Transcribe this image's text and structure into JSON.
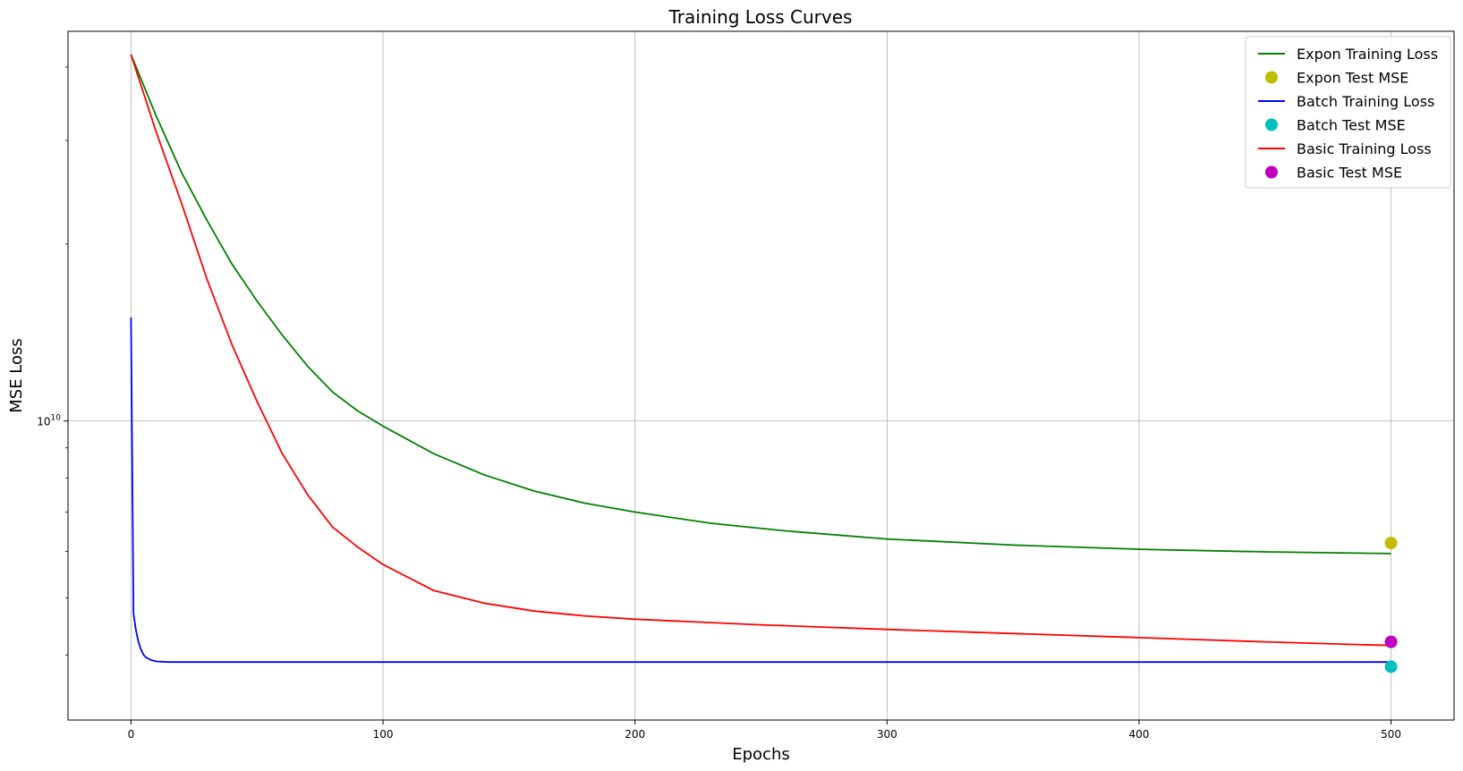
{
  "chart_data": {
    "type": "line",
    "title": "Training Loss Curves",
    "xlabel": "Epochs",
    "ylabel": "MSE Loss",
    "xlim": [
      -25,
      525
    ],
    "ylim": [
      3100000000,
      46000000000
    ],
    "yscale": "log",
    "x_ticks": [
      0,
      100,
      200,
      300,
      400,
      500
    ],
    "y_major_ticks": [
      {
        "value": 10000000000,
        "base": "10",
        "exp": "10"
      }
    ],
    "grid": true,
    "legend_position": "top-right",
    "series": [
      {
        "name": "Expon Training Loss",
        "kind": "line",
        "color": "#008000",
        "x": [
          0,
          10,
          20,
          30,
          40,
          50,
          60,
          70,
          80,
          90,
          100,
          120,
          140,
          160,
          180,
          200,
          230,
          260,
          300,
          350,
          400,
          450,
          500
        ],
        "y": [
          42000000000,
          33000000000,
          26500000000,
          22000000000,
          18500000000,
          16000000000,
          14000000000,
          12400000000,
          11200000000,
          10400000000,
          9800000000,
          8800000000,
          8100000000,
          7600000000,
          7250000000,
          7000000000,
          6700000000,
          6500000000,
          6300000000,
          6150000000,
          6050000000,
          5990000000,
          5950000000
        ]
      },
      {
        "name": "Expon Test MSE",
        "kind": "point",
        "color": "#bfbf00",
        "x": [
          500
        ],
        "y": [
          6200000000
        ]
      },
      {
        "name": "Batch Training Loss",
        "kind": "line",
        "color": "#0000ff",
        "x": [
          0,
          1,
          2,
          3,
          4,
          5,
          6,
          8,
          10,
          15,
          20,
          50,
          100,
          150,
          200,
          250,
          300,
          350,
          400,
          450,
          500
        ],
        "y": [
          15000000000,
          4700000000,
          4400000000,
          4200000000,
          4080000000,
          4000000000,
          3960000000,
          3920000000,
          3900000000,
          3890000000,
          3890000000,
          3890000000,
          3890000000,
          3890000000,
          3890000000,
          3890000000,
          3890000000,
          3890000000,
          3890000000,
          3890000000,
          3890000000
        ]
      },
      {
        "name": "Batch Test MSE",
        "kind": "point",
        "color": "#00bfbf",
        "x": [
          500
        ],
        "y": [
          3820000000
        ]
      },
      {
        "name": "Basic Training Loss",
        "kind": "line",
        "color": "#ff0000",
        "x": [
          0,
          10,
          20,
          30,
          40,
          50,
          60,
          70,
          80,
          90,
          100,
          120,
          140,
          160,
          180,
          200,
          250,
          300,
          350,
          400,
          450,
          500
        ],
        "y": [
          42000000000,
          31000000000,
          23500000000,
          17500000000,
          13500000000,
          10800000000,
          8800000000,
          7500000000,
          6600000000,
          6100000000,
          5700000000,
          5150000000,
          4900000000,
          4750000000,
          4660000000,
          4600000000,
          4500000000,
          4420000000,
          4350000000,
          4280000000,
          4210000000,
          4150000000
        ]
      },
      {
        "name": "Basic Test MSE",
        "kind": "point",
        "color": "#bf00bf",
        "x": [
          500
        ],
        "y": [
          4210000000
        ]
      }
    ]
  }
}
